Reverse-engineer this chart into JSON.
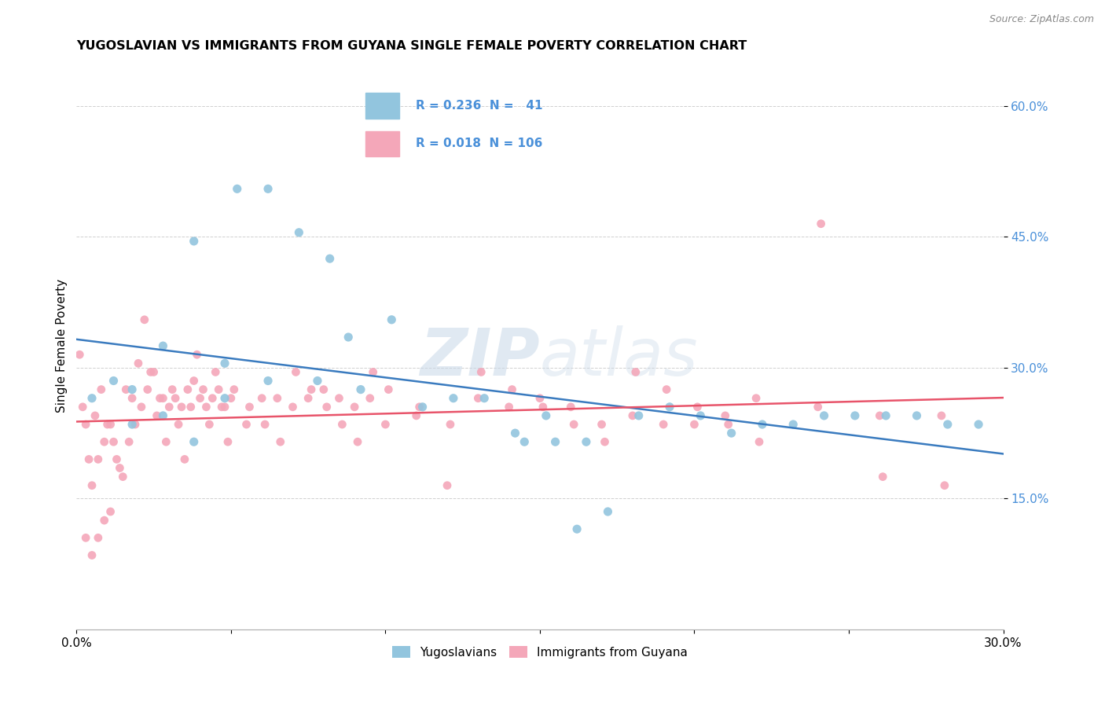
{
  "title": "YUGOSLAVIAN VS IMMIGRANTS FROM GUYANA SINGLE FEMALE POVERTY CORRELATION CHART",
  "source": "Source: ZipAtlas.com",
  "ylabel": "Single Female Poverty",
  "ytick_labels": [
    "15.0%",
    "30.0%",
    "45.0%",
    "60.0%"
  ],
  "ytick_values": [
    0.15,
    0.3,
    0.45,
    0.6
  ],
  "xlim": [
    0.0,
    0.3
  ],
  "ylim": [
    0.0,
    0.65
  ],
  "color_blue": "#92c5de",
  "color_pink": "#f4a7b9",
  "color_blue_line": "#3a7bbf",
  "color_pink_line": "#e8546a",
  "color_ytick": "#4a90d9",
  "watermark_color": "#c8d8e8",
  "blue_x": [
    0.005,
    0.012,
    0.018,
    0.028,
    0.038,
    0.048,
    0.052,
    0.062,
    0.072,
    0.082,
    0.092,
    0.102,
    0.112,
    0.122,
    0.132,
    0.142,
    0.152,
    0.162,
    0.172,
    0.182,
    0.192,
    0.202,
    0.212,
    0.222,
    0.232,
    0.242,
    0.252,
    0.262,
    0.272,
    0.282,
    0.292,
    0.048,
    0.062,
    0.078,
    0.088,
    0.038,
    0.028,
    0.018,
    0.145,
    0.155,
    0.165
  ],
  "blue_y": [
    0.265,
    0.285,
    0.275,
    0.325,
    0.445,
    0.265,
    0.505,
    0.505,
    0.455,
    0.425,
    0.275,
    0.355,
    0.255,
    0.265,
    0.265,
    0.225,
    0.245,
    0.115,
    0.135,
    0.245,
    0.255,
    0.245,
    0.225,
    0.235,
    0.235,
    0.245,
    0.245,
    0.245,
    0.245,
    0.235,
    0.235,
    0.305,
    0.285,
    0.285,
    0.335,
    0.215,
    0.245,
    0.235,
    0.215,
    0.215,
    0.215
  ],
  "pink_x": [
    0.002,
    0.004,
    0.006,
    0.008,
    0.01,
    0.012,
    0.014,
    0.016,
    0.018,
    0.02,
    0.022,
    0.024,
    0.026,
    0.028,
    0.03,
    0.032,
    0.034,
    0.036,
    0.038,
    0.04,
    0.042,
    0.044,
    0.046,
    0.048,
    0.05,
    0.055,
    0.06,
    0.065,
    0.07,
    0.075,
    0.08,
    0.085,
    0.09,
    0.095,
    0.1,
    0.11,
    0.12,
    0.13,
    0.14,
    0.15,
    0.16,
    0.17,
    0.18,
    0.19,
    0.2,
    0.21,
    0.22,
    0.24,
    0.26,
    0.28,
    0.003,
    0.005,
    0.007,
    0.009,
    0.011,
    0.013,
    0.015,
    0.017,
    0.019,
    0.021,
    0.023,
    0.025,
    0.027,
    0.029,
    0.031,
    0.033,
    0.035,
    0.037,
    0.039,
    0.041,
    0.043,
    0.045,
    0.047,
    0.049,
    0.051,
    0.056,
    0.061,
    0.066,
    0.071,
    0.076,
    0.081,
    0.086,
    0.091,
    0.096,
    0.101,
    0.111,
    0.121,
    0.131,
    0.141,
    0.151,
    0.161,
    0.171,
    0.181,
    0.191,
    0.201,
    0.211,
    0.221,
    0.241,
    0.261,
    0.281,
    0.001,
    0.003,
    0.005,
    0.007,
    0.009,
    0.011
  ],
  "pink_y": [
    0.255,
    0.195,
    0.245,
    0.275,
    0.235,
    0.215,
    0.185,
    0.275,
    0.265,
    0.305,
    0.355,
    0.295,
    0.245,
    0.265,
    0.255,
    0.265,
    0.255,
    0.275,
    0.285,
    0.265,
    0.255,
    0.265,
    0.275,
    0.255,
    0.265,
    0.235,
    0.265,
    0.265,
    0.255,
    0.265,
    0.275,
    0.265,
    0.255,
    0.265,
    0.235,
    0.245,
    0.165,
    0.265,
    0.255,
    0.265,
    0.255,
    0.235,
    0.245,
    0.235,
    0.235,
    0.245,
    0.265,
    0.255,
    0.245,
    0.245,
    0.235,
    0.165,
    0.195,
    0.215,
    0.235,
    0.195,
    0.175,
    0.215,
    0.235,
    0.255,
    0.275,
    0.295,
    0.265,
    0.215,
    0.275,
    0.235,
    0.195,
    0.255,
    0.315,
    0.275,
    0.235,
    0.295,
    0.255,
    0.215,
    0.275,
    0.255,
    0.235,
    0.215,
    0.295,
    0.275,
    0.255,
    0.235,
    0.215,
    0.295,
    0.275,
    0.255,
    0.235,
    0.295,
    0.275,
    0.255,
    0.235,
    0.215,
    0.295,
    0.275,
    0.255,
    0.235,
    0.215,
    0.465,
    0.175,
    0.165,
    0.315,
    0.105,
    0.085,
    0.105,
    0.125,
    0.135
  ],
  "legend_text_1": "R = 0.236  N =   41",
  "legend_text_2": "R = 0.018  N = 106",
  "bottom_label_1": "Yugoslavians",
  "bottom_label_2": "Immigrants from Guyana"
}
